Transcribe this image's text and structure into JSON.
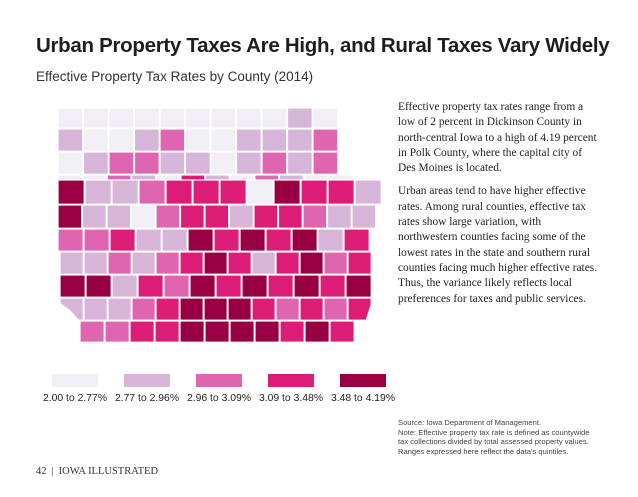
{
  "title": "Urban Property Taxes Are High, and Rural Taxes Vary Widely",
  "subtitle": "Effective Property Tax Rates by County (2014)",
  "body": {
    "p1": "Effective property tax rates range from a low of 2 percent in Dickinson County in north-central Iowa to a high of 4.19 percent in Polk County, where the capital city of Des Moines is located.",
    "p2": "Urban areas tend to have higher effective rates. Among rural counties, effective tax rates show large variation, with northwestern counties facing some of the lowest rates in the state and southern rural counties facing much higher effective rates. Thus, the variance likely reflects local preferences for taxes and public services."
  },
  "legend": [
    {
      "label": "2.00 to 2.77%",
      "color": "#f1eef6"
    },
    {
      "label": "2.77 to 2.96%",
      "color": "#d7b5d8"
    },
    {
      "label": "2.96 to 3.09%",
      "color": "#df65b0"
    },
    {
      "label": "3.09 to 3.48%",
      "color": "#dd1c77"
    },
    {
      "label": "3.48 to 4.19%",
      "color": "#980043"
    }
  ],
  "source": {
    "line1": "Source: Iowa Department of Management.",
    "line2": "Note: Effective property tax rate is defined as countywide tax collections divided by total assessed property values.",
    "line3": "Ranges expressed here reflect the data's quintiles."
  },
  "footer": {
    "page": "42",
    "separator": "|",
    "publication": "IOWA ILLUSTRATED"
  },
  "map": {
    "counties": [
      [
        0,
        0,
        0,
        0,
        0,
        0,
        0,
        0,
        0,
        1,
        0
      ],
      [
        1,
        0,
        0,
        1,
        2,
        0,
        0,
        1,
        1,
        1,
        2
      ],
      [
        0,
        1,
        2,
        2,
        1,
        1,
        0,
        1,
        2,
        1,
        2
      ],
      [
        0,
        0,
        2,
        1,
        0,
        3,
        1,
        0,
        2,
        1,
        0,
        0
      ],
      [
        4,
        1,
        1,
        2,
        3,
        3,
        3,
        0,
        4,
        3,
        3,
        1
      ],
      [
        4,
        1,
        1,
        0,
        2,
        3,
        3,
        1,
        3,
        3,
        2,
        1,
        1
      ],
      [
        2,
        2,
        3,
        1,
        1,
        4,
        3,
        4,
        3,
        4,
        1,
        3
      ],
      [
        1,
        1,
        2,
        1,
        2,
        3,
        4,
        3,
        1,
        3,
        4,
        2,
        3
      ],
      [
        4,
        4,
        1,
        3,
        2,
        4,
        3,
        4,
        3,
        4,
        3,
        4
      ],
      [
        1,
        1,
        1,
        2,
        3,
        4,
        4,
        4,
        3,
        2,
        3,
        2,
        3
      ],
      [
        2,
        2,
        3,
        3,
        4,
        4,
        4,
        4,
        3,
        4,
        3
      ],
      [
        2,
        1,
        3,
        3,
        4,
        4,
        4,
        4,
        4,
        2,
        4
      ]
    ]
  }
}
